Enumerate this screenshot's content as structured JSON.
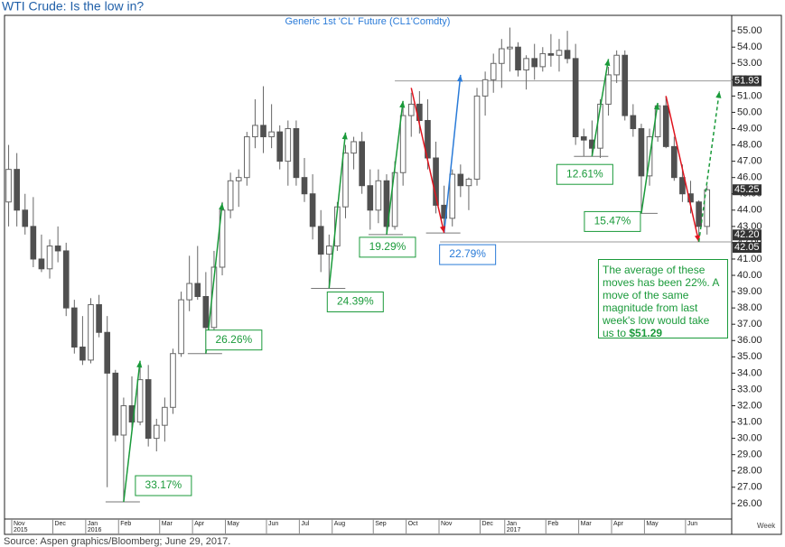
{
  "chart_data": {
    "type": "candlestick",
    "title": "WTI Crude: Is the low in?",
    "subtitle": "Generic  1st  'CL'  Future  (CL1'Comdty)",
    "source": "Source: Aspen graphics/Bloomberg; June 29, 2017.",
    "x_unit_label": "Week",
    "categories": [
      null,
      "Nov",
      null,
      null,
      null,
      null,
      "Dec",
      null,
      null,
      null,
      "Jan",
      null,
      null,
      null,
      "Feb",
      null,
      null,
      null,
      null,
      "Mar",
      null,
      null,
      null,
      "Apr",
      null,
      null,
      null,
      "May",
      null,
      null,
      null,
      null,
      "Jun",
      null,
      null,
      null,
      "Jul",
      null,
      null,
      null,
      "Aug",
      null,
      null,
      null,
      null,
      "Sep",
      null,
      null,
      null,
      "Oct",
      null,
      null,
      null,
      "Nov",
      null,
      null,
      null,
      null,
      "Dec",
      null,
      null,
      "Jan",
      null,
      null,
      null,
      null,
      "Feb",
      null,
      null,
      null,
      "Mar",
      null,
      null,
      null,
      "Apr",
      null,
      null,
      null,
      "May",
      null,
      null,
      null,
      null,
      "Jun",
      null,
      null
    ],
    "years": [
      null,
      "2015",
      null,
      null,
      null,
      null,
      null,
      null,
      null,
      null,
      "2016",
      null,
      null,
      null,
      null,
      null,
      null,
      null,
      null,
      null,
      null,
      null,
      null,
      null,
      null,
      null,
      null,
      null,
      null,
      null,
      null,
      null,
      null,
      null,
      null,
      null,
      null,
      null,
      null,
      null,
      null,
      null,
      null,
      null,
      null,
      null,
      null,
      null,
      null,
      null,
      null,
      null,
      null,
      null,
      null,
      null,
      null,
      null,
      null,
      null,
      null,
      "2017",
      null,
      null,
      null,
      null,
      null,
      null,
      null,
      null,
      null,
      null,
      null,
      null,
      null,
      null,
      null,
      null,
      null,
      null,
      null,
      null,
      null,
      null,
      null,
      null
    ],
    "open": [
      44.5,
      46.5,
      44,
      43,
      41,
      40.4,
      41.8,
      41.5,
      38,
      35.6,
      34.8,
      38.2,
      36.5,
      34,
      30.2,
      32,
      31,
      33.6,
      30,
      30.8,
      31.9,
      35.2,
      38.5,
      39.5,
      38.7,
      36.8,
      40.5,
      44,
      45.8,
      46,
      48.5,
      49.2,
      48.5,
      48.8,
      47,
      49,
      46,
      45,
      43,
      41.3,
      41.8,
      44.2,
      47.5,
      48.2,
      45.5,
      44,
      45.8,
      43,
      46.3,
      49.8,
      50.5,
      49.5,
      47.2,
      44.3,
      43.5,
      46.2,
      45.5,
      45.9,
      51,
      52,
      53,
      53.9,
      54,
      52.6,
      53.3,
      52.8,
      53.6,
      53.5,
      53.8,
      53.3,
      48.5,
      48.3,
      47.8,
      50.5,
      52.3,
      53.5,
      49.8,
      49,
      46.1,
      48.5,
      50.4,
      47.9,
      46,
      45,
      44.5,
      43
    ],
    "high": [
      48,
      47.5,
      45,
      44.8,
      42.5,
      42.2,
      43,
      42,
      38.5,
      37.5,
      38.6,
      38.8,
      37.5,
      34.2,
      32.5,
      33.8,
      34.5,
      34.5,
      31.2,
      32.5,
      35.5,
      39,
      41.2,
      41.8,
      40.2,
      41.5,
      44.5,
      46.3,
      46.5,
      48.8,
      50.8,
      51.6,
      50.5,
      49.2,
      49.5,
      49.5,
      47.2,
      46.2,
      44,
      42.5,
      44.5,
      48,
      48.5,
      48.8,
      46.5,
      46.5,
      46.2,
      47,
      50.5,
      51.2,
      51.3,
      50.8,
      48.2,
      45.5,
      46.5,
      46.8,
      46,
      51.5,
      52.5,
      53.6,
      54.5,
      55.2,
      54.3,
      53.5,
      54.2,
      54,
      54.8,
      54.5,
      55,
      54.2,
      49,
      49.5,
      50.8,
      52.8,
      53.8,
      53.8,
      50.5,
      49.3,
      49,
      50.5,
      51,
      48.5,
      46.8,
      45.8,
      44.6,
      45.5
    ],
    "low": [
      43,
      43,
      42.5,
      40.5,
      40.2,
      39.8,
      40.8,
      37.5,
      35.2,
      34.5,
      34.6,
      36.2,
      27,
      29.8,
      26.1,
      30.5,
      30.8,
      29.5,
      29.2,
      29.8,
      31.5,
      35,
      37.8,
      38.5,
      35.2,
      36.5,
      40,
      43.5,
      44.2,
      45.5,
      47.8,
      47.5,
      47.8,
      46.5,
      45.5,
      45.5,
      44.5,
      42.2,
      40.2,
      39.2,
      41.5,
      43.5,
      46.5,
      45,
      42.8,
      43.2,
      42.5,
      42.8,
      45.5,
      48.5,
      48.7,
      46.5,
      43.8,
      42.6,
      43,
      44.8,
      44,
      45.5,
      49.8,
      51.2,
      51.5,
      52.5,
      52.2,
      51.4,
      52,
      52.5,
      52.8,
      52.5,
      53,
      48,
      47.3,
      47.3,
      47.2,
      49.8,
      51.8,
      49.5,
      48.5,
      43.8,
      45.5,
      48.2,
      47.8,
      45.8,
      44.5,
      43.8,
      42.05,
      42.5
    ],
    "close": [
      46.5,
      44,
      43,
      41,
      40.4,
      41.8,
      41.5,
      38,
      35.6,
      34.8,
      38.2,
      36.5,
      34,
      30.2,
      32,
      31,
      33.6,
      30,
      30.8,
      31.9,
      35.2,
      38.5,
      39.5,
      38.7,
      36.8,
      40.5,
      44,
      45.8,
      46,
      48.5,
      49.2,
      48.5,
      48.8,
      47,
      49,
      46,
      45,
      43,
      41.3,
      41.8,
      44.2,
      47.5,
      48.2,
      45.5,
      44,
      45.8,
      43,
      46.3,
      49.8,
      50.5,
      49.5,
      47.2,
      44.3,
      43.5,
      46.2,
      45.5,
      45.9,
      51,
      52,
      53,
      53.9,
      54,
      52.6,
      53.3,
      52.8,
      53.6,
      53.5,
      53.8,
      53.3,
      48.5,
      48.3,
      47.8,
      50.5,
      52.3,
      53.5,
      49.8,
      49,
      46.1,
      48.5,
      50.4,
      47.9,
      46,
      45,
      44.5,
      43,
      45.25
    ],
    "up_color": "#ffffff",
    "down_color": "#505050",
    "wick_color": "#666666",
    "xlim": [
      -0.5,
      88
    ],
    "ylim": [
      25.05,
      55.95
    ],
    "yticks": [
      {
        "value": 26,
        "label": "26.00"
      },
      {
        "value": 27,
        "label": "27.00"
      },
      {
        "value": 28,
        "label": "28.00"
      },
      {
        "value": 29,
        "label": "29.00"
      },
      {
        "value": 30,
        "label": "30.00"
      },
      {
        "value": 31,
        "label": "31.00"
      },
      {
        "value": 32,
        "label": "32.00"
      },
      {
        "value": 33,
        "label": "33.00"
      },
      {
        "value": 34,
        "label": "34.00"
      },
      {
        "value": 35,
        "label": "35.00"
      },
      {
        "value": 36,
        "label": "36.00"
      },
      {
        "value": 37,
        "label": "37.00"
      },
      {
        "value": 38,
        "label": "38.00"
      },
      {
        "value": 39,
        "label": "39.00"
      },
      {
        "value": 40,
        "label": "40.00"
      },
      {
        "value": 41,
        "label": "41.00"
      },
      {
        "value": 42,
        "label": "42.00"
      },
      {
        "value": 43,
        "label": "43.00"
      },
      {
        "value": 44,
        "label": "44.00"
      },
      {
        "value": 45,
        "label": "45.00"
      },
      {
        "value": 46,
        "label": "46.00"
      },
      {
        "value": 47,
        "label": "47.00"
      },
      {
        "value": 48,
        "label": "48.00"
      },
      {
        "value": 49,
        "label": "49.00"
      },
      {
        "value": 50,
        "label": "50.00"
      },
      {
        "value": 51,
        "label": "51.00"
      },
      {
        "value": 52,
        "label": "52.00"
      },
      {
        "value": 53,
        "label": "53.00"
      },
      {
        "value": 54,
        "label": "54.00"
      },
      {
        "value": 55,
        "label": "55.00"
      }
    ],
    "moves": [
      {
        "label": "33.17%",
        "x": [
          14,
          16
        ],
        "y": [
          26.1,
          34.76
        ],
        "color": "#1a9a3a"
      },
      {
        "label": "26.26%",
        "x": [
          24,
          26
        ],
        "y": [
          35.2,
          44.44
        ],
        "color": "#1a9a3a"
      },
      {
        "label": "24.39%",
        "x": [
          39,
          41
        ],
        "y": [
          39.2,
          48.76
        ],
        "color": "#1a9a3a"
      },
      {
        "label": "19.29%",
        "x": [
          46,
          48
        ],
        "y": [
          42.5,
          50.7
        ],
        "color": "#1a9a3a"
      },
      {
        "label": "22.79%",
        "x": [
          53,
          55
        ],
        "y": [
          42.6,
          52.3
        ],
        "color": "#2a7bd8"
      },
      {
        "label": "12.61%",
        "x": [
          71,
          73
        ],
        "y": [
          47.3,
          53.27
        ],
        "color": "#1a9a3a"
      },
      {
        "label": "15.47%",
        "x": [
          77,
          79
        ],
        "y": [
          43.8,
          50.58
        ],
        "color": "#1a9a3a"
      }
    ],
    "declines": [
      {
        "x": [
          49,
          53
        ],
        "y": [
          51.5,
          42.6
        ],
        "color": "#e0141e"
      },
      {
        "x": [
          80,
          84
        ],
        "y": [
          51,
          42.05
        ],
        "color": "#e0141e"
      }
    ],
    "projection": {
      "x": [
        84,
        86.5
      ],
      "y": [
        42.05,
        51.29
      ],
      "color": "#1a9a3a",
      "dashed": true
    },
    "price_labels": [
      {
        "value": 51.93,
        "label": "51.93"
      },
      {
        "value": 45.25,
        "label": "45.25"
      },
      {
        "value": 42.2,
        "label": "42.20"
      },
      {
        "value": 42.05,
        "label": "42.05"
      }
    ],
    "note": {
      "text": "The average of these moves has been 22%. A move of the same magnitude from last week's low would take us to",
      "highlight": "$51.29"
    }
  }
}
